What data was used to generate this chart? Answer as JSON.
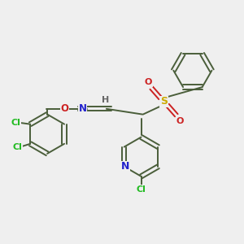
{
  "background_color": "#efefef",
  "bond_color": "#4a5e3a",
  "atom_colors": {
    "Cl": "#22bb22",
    "N": "#2222cc",
    "O": "#cc2222",
    "S": "#ccaa00",
    "H": "#666666",
    "C_implicit": "#4a5e3a"
  },
  "figsize": [
    3.0,
    3.0
  ],
  "dpi": 100
}
